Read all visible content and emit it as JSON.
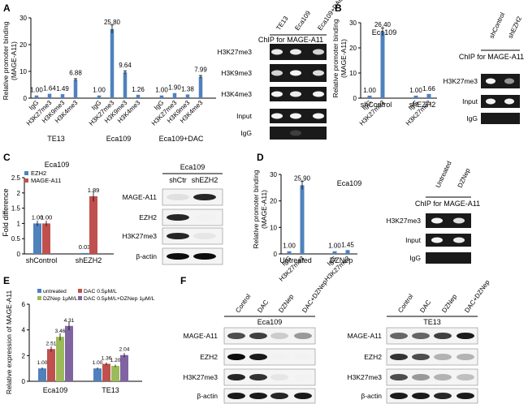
{
  "colors": {
    "blue": "#4f81bd",
    "red": "#c0504d",
    "green": "#9bbb59",
    "purple": "#8064a2"
  },
  "panels": {
    "A": "A",
    "B": "B",
    "C": "C",
    "D": "D",
    "E": "E",
    "F": "F"
  },
  "common": {
    "ylabel_binding": "Relative promoter binding",
    "ylabel_gene": "(MAGE-A11)",
    "chip_title": "ChIP for MAGE-A11",
    "marks": [
      "IgG",
      "H3K27me3",
      "H3K9me3",
      "H3K4me3"
    ]
  },
  "blots": {
    "A": {
      "cols": [
        "TE13",
        "Eca109",
        "Eca109+DAC"
      ],
      "rows": [
        "H3K27me3",
        "H3K9me3",
        "H3K4me3",
        "Input",
        "IgG"
      ]
    },
    "B": {
      "cols": [
        "shControl",
        "shEZH2"
      ],
      "rows": [
        "H3K27me3",
        "Input",
        "IgG"
      ]
    },
    "C": {
      "title": "Eca109",
      "cols": [
        "shCtr",
        "shEZH2"
      ],
      "rows": [
        "MAGE-A11",
        "EZH2",
        "H3K27me3",
        "β-actin"
      ]
    },
    "D": {
      "cols": [
        "Untreated",
        "DZNep"
      ],
      "rows": [
        "H3K27me3",
        "Input",
        "IgG"
      ]
    },
    "F1": {
      "title": "Eca109",
      "cols": [
        "Control",
        "DAC",
        "DZNep",
        "DAC+DZNep"
      ],
      "rows": [
        "MAGE-A11",
        "EZH2",
        "H3K27me3",
        "β-actin"
      ]
    },
    "F2": {
      "title": "TE13",
      "cols": [
        "Control",
        "DAC",
        "DZNep",
        "DAC+DZNep"
      ],
      "rows": [
        "MAGE-A11",
        "EZH2",
        "H3K27me3",
        "β-actin"
      ]
    }
  },
  "chart_data": [
    {
      "id": "A",
      "type": "bar",
      "ylim": [
        0,
        30
      ],
      "yticks": [
        0,
        10,
        20,
        30
      ],
      "groups": [
        {
          "name": "TE13",
          "categories": [
            "IgG",
            "H3K27me3",
            "H3K9me3",
            "H3K4me3"
          ],
          "values": [
            1.0,
            1.64,
            1.49,
            6.88
          ],
          "labels": [
            "1.00",
            "1.64",
            "1.49",
            "6.88"
          ]
        },
        {
          "name": "Eca109",
          "categories": [
            "IgG",
            "H3K27me3",
            "H3K9me3",
            "H3K4me3"
          ],
          "values": [
            1.0,
            25.8,
            9.64,
            1.26
          ],
          "labels": [
            "1.00",
            "25.80",
            "9.64",
            "1.26"
          ]
        },
        {
          "name": "Eca109+DAC",
          "categories": [
            "IgG",
            "H3K27me3",
            "H3K9me3",
            "H3K4me3"
          ],
          "values": [
            1.0,
            1.9,
            1.38,
            7.99
          ],
          "labels": [
            "1.00",
            "1.90",
            "1.38",
            "7.99"
          ]
        }
      ]
    },
    {
      "id": "B",
      "type": "bar",
      "title": "Eca109",
      "ylim": [
        0,
        30
      ],
      "yticks": [
        0,
        10,
        20,
        30
      ],
      "groups": [
        {
          "name": "shControl",
          "categories": [
            "IgG",
            "H3K27me3"
          ],
          "values": [
            1.0,
            26.4
          ],
          "labels": [
            "1.00",
            "26.40"
          ]
        },
        {
          "name": "shEZH2",
          "categories": [
            "IgG",
            "H3K27me3"
          ],
          "values": [
            1.0,
            1.66
          ],
          "labels": [
            "1.00",
            "1.66"
          ]
        }
      ]
    },
    {
      "id": "C",
      "type": "bar",
      "title": "Eca109",
      "ylabel": "Fold difference",
      "ylim": [
        0,
        2.5
      ],
      "yticks": [
        0,
        0.5,
        1,
        1.5,
        2,
        2.5
      ],
      "categories": [
        "shControl",
        "shEZH2"
      ],
      "series": [
        {
          "name": "EZH2",
          "values": [
            1.0,
            0.03
          ],
          "labels": [
            "1.00",
            "0.03"
          ]
        },
        {
          "name": "MAGE-A11",
          "values": [
            1.0,
            1.89
          ],
          "labels": [
            "1.00",
            "1.89"
          ]
        }
      ]
    },
    {
      "id": "D",
      "type": "bar",
      "title": "Eca109",
      "ylim": [
        0,
        30
      ],
      "yticks": [
        0,
        10,
        20,
        30
      ],
      "groups": [
        {
          "name": "Untreated",
          "categories": [
            "IgG",
            "H3K27me3"
          ],
          "values": [
            1.0,
            25.9
          ],
          "labels": [
            "1.00",
            "25.90"
          ]
        },
        {
          "name": "DZNep",
          "categories": [
            "IgG",
            "H3K27me3"
          ],
          "values": [
            1.0,
            1.45
          ],
          "labels": [
            "1.00",
            "1.45"
          ]
        }
      ]
    },
    {
      "id": "E",
      "type": "bar",
      "ylabel": "Relative expression of MAGE-A11",
      "ylim": [
        0,
        6
      ],
      "yticks": [
        0,
        2,
        4,
        6
      ],
      "categories": [
        "Eca109",
        "TE13"
      ],
      "series": [
        {
          "name": "untreated",
          "values": [
            1.0,
            1.0
          ],
          "labels": [
            "1.00",
            "1.00"
          ]
        },
        {
          "name": "DAC 0.5μM/L",
          "values": [
            2.51,
            1.36
          ],
          "labels": [
            "2.51",
            "1.36"
          ]
        },
        {
          "name": "DZNep 1μM/L",
          "values": [
            3.46,
            1.2
          ],
          "labels": [
            "3.46",
            "1.20"
          ]
        },
        {
          "name": "DAC 0.5μM/L+DZNep 1μM/L",
          "values": [
            4.31,
            2.04
          ],
          "labels": [
            "4.31",
            "2.04"
          ]
        }
      ]
    }
  ]
}
